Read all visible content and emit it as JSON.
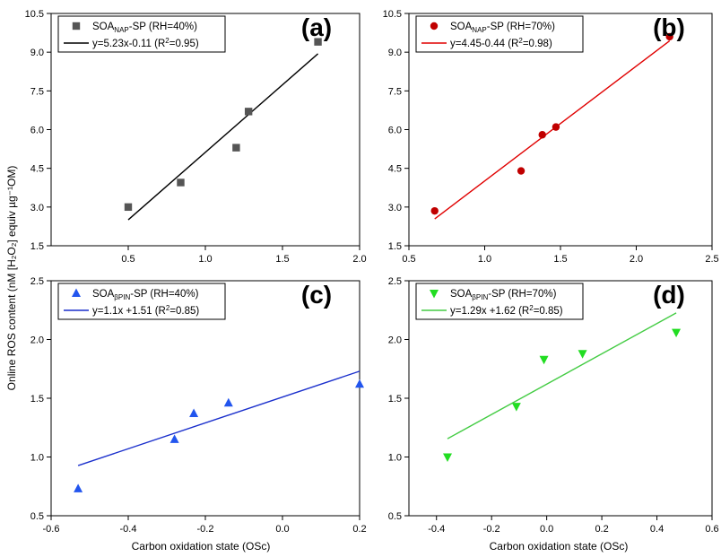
{
  "figure": {
    "ylabel": "Online ROS content (nM [H₂O₂] equiv µg⁻¹OM)",
    "xlabel": "Carbon oxidation state (OSc)"
  },
  "chart_data": [
    {
      "type": "scatter",
      "panel_label": "(a)",
      "xlim": [
        0.0,
        2.0
      ],
      "ylim": [
        1.5,
        10.5
      ],
      "xticks": [
        "0.5",
        "1.0",
        "1.5",
        "2.0"
      ],
      "yticks": [
        "1.5",
        "3.0",
        "4.5",
        "6.0",
        "7.5",
        "9.0",
        "10.5"
      ],
      "color": "#555555",
      "fit_color": "#000000",
      "marker": "square",
      "legend_placement": "top-left",
      "series_name": "SOA_NAP-SP (RH=40%)",
      "legend": {
        "prefix": "SOA",
        "sub": "NAP",
        "suffix": "-SP (RH=40%)"
      },
      "fit_label": {
        "text": "y=5.23x-0.11 (R",
        "sup": "2",
        "tail": "=0.95)"
      },
      "points": [
        [
          0.5,
          3.0
        ],
        [
          0.84,
          3.95
        ],
        [
          1.2,
          5.3
        ],
        [
          1.28,
          6.7
        ],
        [
          1.73,
          9.4
        ]
      ],
      "fit": {
        "slope": 5.23,
        "intercept": -0.11,
        "x_range": [
          0.5,
          1.73
        ]
      },
      "grid": false
    },
    {
      "type": "scatter",
      "panel_label": "(b)",
      "xlim": [
        0.5,
        2.5
      ],
      "ylim": [
        1.5,
        10.5
      ],
      "xticks": [
        "0.5",
        "1.0",
        "1.5",
        "2.0",
        "2.5"
      ],
      "yticks": [
        "1.5",
        "3.0",
        "4.5",
        "6.0",
        "7.5",
        "9.0",
        "10.5"
      ],
      "color": "#c00000",
      "fit_color": "#e00000",
      "marker": "circle",
      "legend_placement": "top-left",
      "series_name": "SOA_NAP-SP (RH=70%)",
      "legend": {
        "prefix": "SOA",
        "sub": "NAP",
        "suffix": "-SP (RH=70%)"
      },
      "fit_label": {
        "text": "y=4.45-0.44 (R",
        "sup": "2",
        "tail": "=0.98)"
      },
      "points": [
        [
          0.67,
          2.85
        ],
        [
          1.24,
          4.4
        ],
        [
          1.38,
          5.8
        ],
        [
          1.47,
          6.1
        ],
        [
          2.22,
          9.6
        ]
      ],
      "fit": {
        "slope": 4.45,
        "intercept": -0.44,
        "x_range": [
          0.67,
          2.22
        ]
      },
      "grid": false
    },
    {
      "type": "scatter",
      "panel_label": "(c)",
      "xlim": [
        -0.6,
        0.2
      ],
      "ylim": [
        0.5,
        2.5
      ],
      "xticks": [
        "-0.6",
        "-0.4",
        "-0.2",
        "0.0",
        "0.2"
      ],
      "yticks": [
        "0.5",
        "1.0",
        "1.5",
        "2.0",
        "2.5"
      ],
      "color": "#2255ee",
      "fit_color": "#1a2fcc",
      "marker": "triangle-up",
      "legend_placement": "top-left",
      "series_name": "SOA_βPIN-SP (RH=40%)",
      "legend": {
        "prefix": "SOA",
        "sub": "βPIN",
        "suffix": "-SP (RH=40%)"
      },
      "fit_label": {
        "text": "y=1.1x +1.51 (R",
        "sup": "2",
        "tail": "=0.85)"
      },
      "points": [
        [
          -0.53,
          0.73
        ],
        [
          -0.28,
          1.15
        ],
        [
          -0.23,
          1.37
        ],
        [
          -0.14,
          1.46
        ],
        [
          0.2,
          1.62
        ]
      ],
      "fit": {
        "slope": 1.1,
        "intercept": 1.51,
        "x_range": [
          -0.53,
          0.2
        ]
      },
      "grid": false
    },
    {
      "type": "scatter",
      "panel_label": "(d)",
      "xlim": [
        -0.5,
        0.6
      ],
      "ylim": [
        0.5,
        2.5
      ],
      "xticks": [
        "-0.4",
        "-0.2",
        "0.0",
        "0.2",
        "0.4",
        "0.6"
      ],
      "yticks": [
        "0.5",
        "1.0",
        "1.5",
        "2.0",
        "2.5"
      ],
      "color": "#22dd22",
      "fit_color": "#44cc44",
      "marker": "triangle-down",
      "legend_placement": "top-left",
      "series_name": "SOA_βPIN-SP (RH=70%)",
      "legend": {
        "prefix": "SOA",
        "sub": "βPIN",
        "suffix": "-SP (RH=70%)"
      },
      "fit_label": {
        "text": "y=1.29x +1.62 (R",
        "sup": "2",
        "tail": "=0.85)"
      },
      "points": [
        [
          -0.36,
          1.0
        ],
        [
          -0.11,
          1.43
        ],
        [
          -0.01,
          1.83
        ],
        [
          0.13,
          1.88
        ],
        [
          0.47,
          2.06
        ]
      ],
      "fit": {
        "slope": 1.29,
        "intercept": 1.62,
        "x_range": [
          -0.36,
          0.47
        ]
      },
      "grid": false
    }
  ]
}
